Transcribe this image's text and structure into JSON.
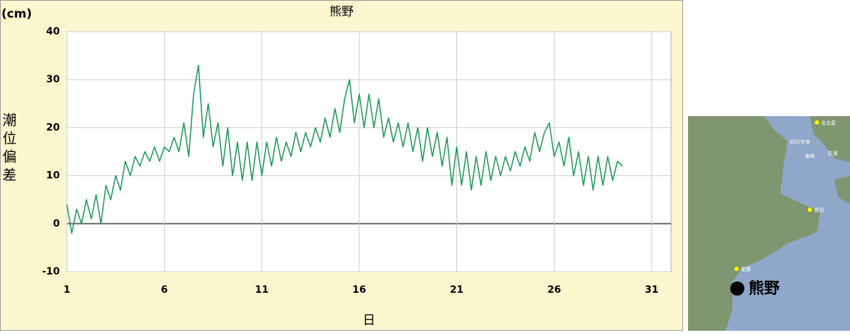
{
  "chart_data": {
    "type": "line",
    "title": "熊野",
    "unit_label": "(cm)",
    "y_label": "潮位偏差",
    "x_label": "日",
    "x": [
      1,
      1.25,
      1.5,
      1.75,
      2,
      2.25,
      2.5,
      2.75,
      3,
      3.25,
      3.5,
      3.75,
      4,
      4.25,
      4.5,
      4.75,
      5,
      5.25,
      5.5,
      5.75,
      6,
      6.25,
      6.5,
      6.75,
      7,
      7.25,
      7.5,
      7.75,
      8,
      8.25,
      8.5,
      8.75,
      9,
      9.25,
      9.5,
      9.75,
      10,
      10.25,
      10.5,
      10.75,
      11,
      11.25,
      11.5,
      11.75,
      12,
      12.25,
      12.5,
      12.75,
      13,
      13.25,
      13.5,
      13.75,
      14,
      14.25,
      14.5,
      14.75,
      15,
      15.25,
      15.5,
      15.75,
      16,
      16.25,
      16.5,
      16.75,
      17,
      17.25,
      17.5,
      17.75,
      18,
      18.25,
      18.5,
      18.75,
      19,
      19.25,
      19.5,
      19.75,
      20,
      20.25,
      20.5,
      20.75,
      21,
      21.25,
      21.5,
      21.75,
      22,
      22.25,
      22.5,
      22.75,
      23,
      23.25,
      23.5,
      23.75,
      24,
      24.25,
      24.5,
      24.75,
      25,
      25.25,
      25.5,
      25.75,
      26,
      26.25,
      26.5,
      26.75,
      27,
      27.25,
      27.5,
      27.75,
      28,
      28.25,
      28.5,
      28.75,
      29,
      29.25,
      29.5
    ],
    "series": [
      {
        "color": "#1f9a5a",
        "values": [
          4,
          -2,
          3,
          0,
          5,
          1,
          6,
          0,
          8,
          5,
          10,
          7,
          13,
          10,
          14,
          12,
          15,
          13,
          16,
          13,
          16,
          15,
          18,
          15,
          21,
          14,
          27,
          33,
          18,
          25,
          16,
          21,
          12,
          20,
          10,
          17,
          9,
          17,
          9,
          17,
          10,
          17,
          12,
          18,
          13,
          17,
          14,
          19,
          15,
          19,
          16,
          20,
          17,
          22,
          18,
          24,
          19,
          26,
          30,
          21,
          27,
          20,
          27,
          20,
          26,
          18,
          22,
          17,
          21,
          16,
          21,
          15,
          20,
          13,
          20,
          14,
          19,
          12,
          18,
          8,
          16,
          8,
          15,
          7,
          14,
          8,
          15,
          9,
          14,
          10,
          14,
          11,
          15,
          12,
          16,
          13,
          19,
          15,
          19,
          21,
          14,
          17,
          12,
          18,
          10,
          15,
          8,
          14,
          7,
          14,
          8,
          14,
          9,
          13,
          12
        ]
      }
    ],
    "xlim": [
      1,
      32
    ],
    "xticks": [
      1,
      6,
      11,
      16,
      21,
      26,
      31
    ],
    "ylim": [
      -10,
      40
    ],
    "yticks": [
      -10,
      0,
      10,
      20,
      30,
      40
    ],
    "grid": true,
    "map": {
      "station": "熊野",
      "labels": [
        "名古屋",
        "四日市港",
        "鬼崎",
        "衣浦",
        "鳥羽",
        "尾鷲"
      ]
    }
  }
}
